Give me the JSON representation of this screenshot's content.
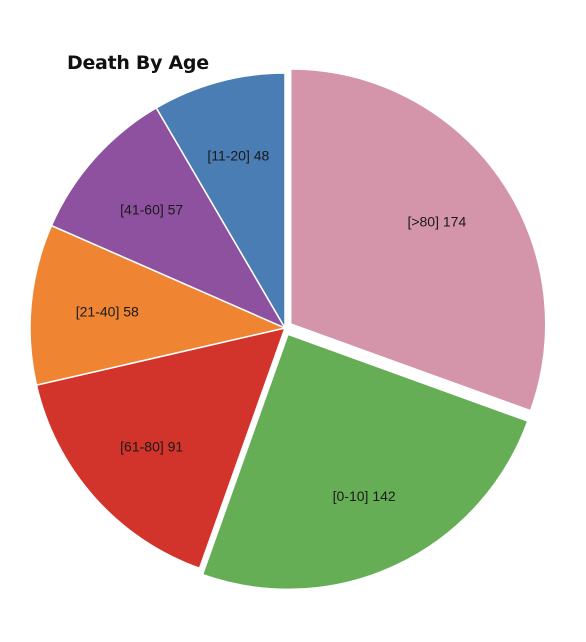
{
  "chart_data": {
    "type": "pie",
    "title": "Death By Age",
    "slices": [
      {
        "label": "[>80]",
        "value": 174,
        "color": "#d495aa",
        "exploded": true
      },
      {
        "label": "[0-10]",
        "value": 142,
        "color": "#66ae56",
        "exploded": true
      },
      {
        "label": "[61-80]",
        "value": 91,
        "color": "#d2332a",
        "exploded": false
      },
      {
        "label": "[21-40]",
        "value": 58,
        "color": "#ef8533",
        "exploded": false
      },
      {
        "label": "[41-60]",
        "value": 57,
        "color": "#8e51a0",
        "exploded": false
      },
      {
        "label": "[11-20]",
        "value": 48,
        "color": "#4a7db4",
        "exploded": false
      }
    ]
  }
}
